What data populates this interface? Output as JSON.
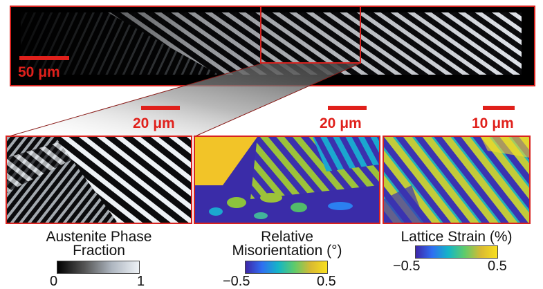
{
  "overview": {
    "scalebar_label": "50 μm"
  },
  "panels": [
    {
      "scalebar_label": "20 μm",
      "title_line1": "Austenite Phase",
      "title_line2": "Fraction",
      "colorbar_min": "0",
      "colorbar_max": "1",
      "colormap": [
        "#000000",
        "#555555",
        "#aeb6c0",
        "#eef2f6"
      ]
    },
    {
      "scalebar_label": "20 μm",
      "title_line1": "Relative",
      "title_line2": "Misorientation (°)",
      "colorbar_min": "−0.5",
      "colorbar_max": "0.5",
      "colormap": [
        "#3e26a8",
        "#2f6ef1",
        "#14b5c7",
        "#5fcb6a",
        "#d9ba32",
        "#f9e01e"
      ]
    },
    {
      "scalebar_label": "10 μm",
      "title_line1": "Lattice Strain (%)",
      "title_line2": "",
      "colorbar_min": "−0.5",
      "colorbar_max": "0.5",
      "colormap": [
        "#3e26a8",
        "#2f6ef1",
        "#14b5c7",
        "#5fcb6a",
        "#d9ba32",
        "#f9e01e"
      ]
    }
  ],
  "colors": {
    "frame": "#d8231f",
    "scalebar": "#e0201b"
  }
}
